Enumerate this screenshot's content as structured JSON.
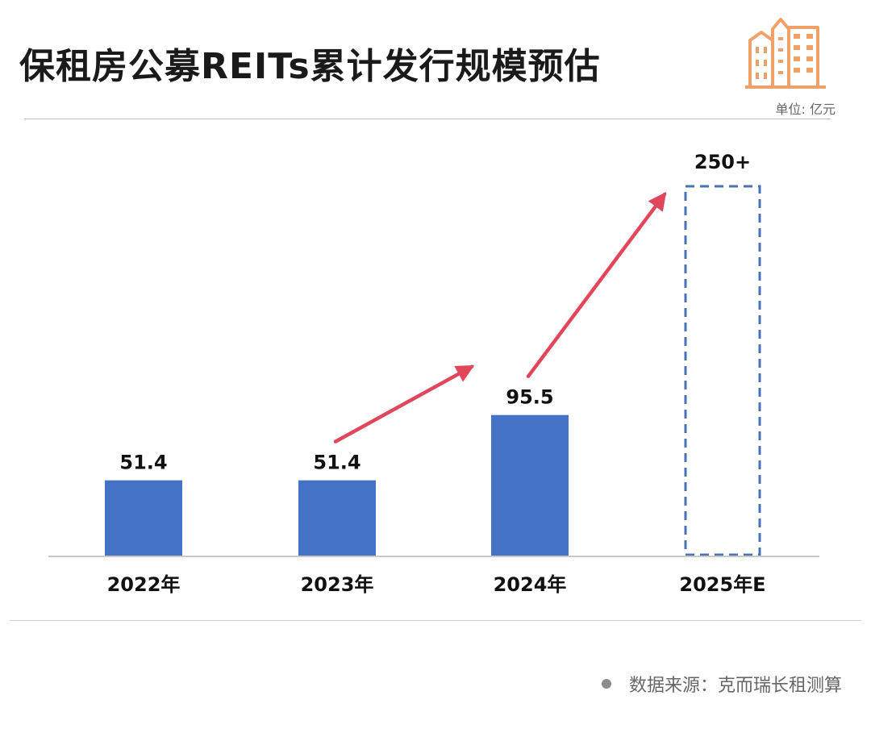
{
  "header": {
    "title": "保租房公募REITs累计发行规模预估",
    "unit": "单位: 亿元"
  },
  "footer": {
    "source": "数据来源：克而瑞长租测算"
  },
  "colors": {
    "bar": "#4472c4",
    "projection_border": "#4a72b5",
    "arrow": "#e0475b",
    "logo": "#f0a16a",
    "axis": "#c8c8c8"
  },
  "chart_data": {
    "type": "bar",
    "title": "保租房公募REITs累计发行规模预估",
    "categories": [
      "2022年",
      "2023年",
      "2024年",
      "2025年E"
    ],
    "values": [
      51.4,
      51.4,
      95.5,
      250
    ],
    "value_labels": [
      "51.4",
      "51.4",
      "95.5",
      "250+"
    ],
    "projected": [
      false,
      false,
      false,
      true
    ],
    "ylim": [
      0,
      250
    ],
    "grid": false,
    "legend": "none",
    "annotations": [
      {
        "type": "trend-arrow",
        "from_category": "2023年",
        "to_category": "2024年"
      },
      {
        "type": "trend-arrow",
        "from_category": "2024年",
        "to_category": "2025年E"
      }
    ]
  }
}
